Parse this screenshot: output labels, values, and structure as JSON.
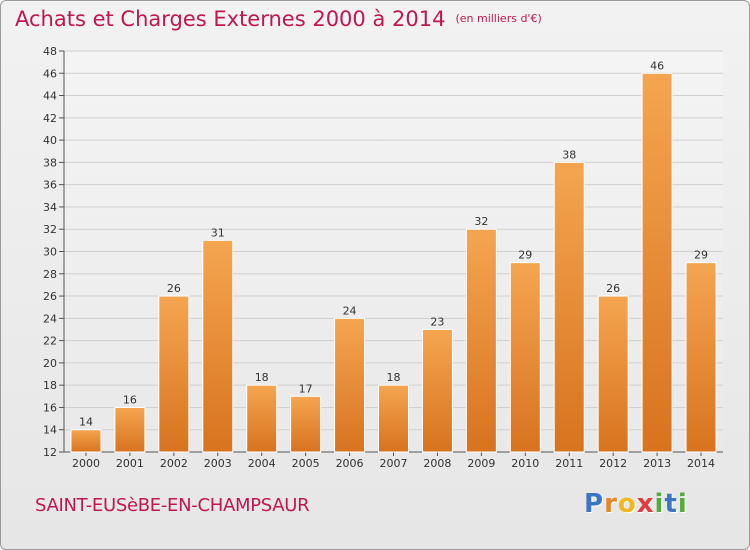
{
  "header": {
    "title": "Achats et Charges Externes 2000 à 2014",
    "unit": "(en milliers d'€)"
  },
  "footer": {
    "commune": "SAINT-EUSèBE-EN-CHAMPSAUR",
    "logo_letters": [
      "P",
      "r",
      "o",
      "x",
      "i",
      "t",
      "i"
    ]
  },
  "colors": {
    "title": "#c0174e",
    "bar_top": "#f5a550",
    "bar_bottom": "#d8731e",
    "logo": [
      "#3a76c4",
      "#e6862a",
      "#f2b720",
      "#e23c3c",
      "#55aa3d",
      "#3a76c4",
      "#55aa3d"
    ]
  },
  "chart_data": {
    "type": "bar",
    "title": "Achats et Charges Externes 2000 à 2014",
    "subtitle": "(en milliers d'€)",
    "categories": [
      "2000",
      "2001",
      "2002",
      "2003",
      "2004",
      "2005",
      "2006",
      "2007",
      "2008",
      "2009",
      "2010",
      "2011",
      "2012",
      "2013",
      "2014"
    ],
    "values": [
      14,
      16,
      26,
      31,
      18,
      17,
      24,
      18,
      23,
      32,
      29,
      38,
      26,
      46,
      29
    ],
    "ylim": [
      12,
      48
    ],
    "yticks": [
      12,
      14,
      16,
      18,
      20,
      22,
      24,
      26,
      28,
      30,
      32,
      34,
      36,
      38,
      40,
      42,
      44,
      46,
      48
    ],
    "grid": true,
    "data_labels": true
  }
}
